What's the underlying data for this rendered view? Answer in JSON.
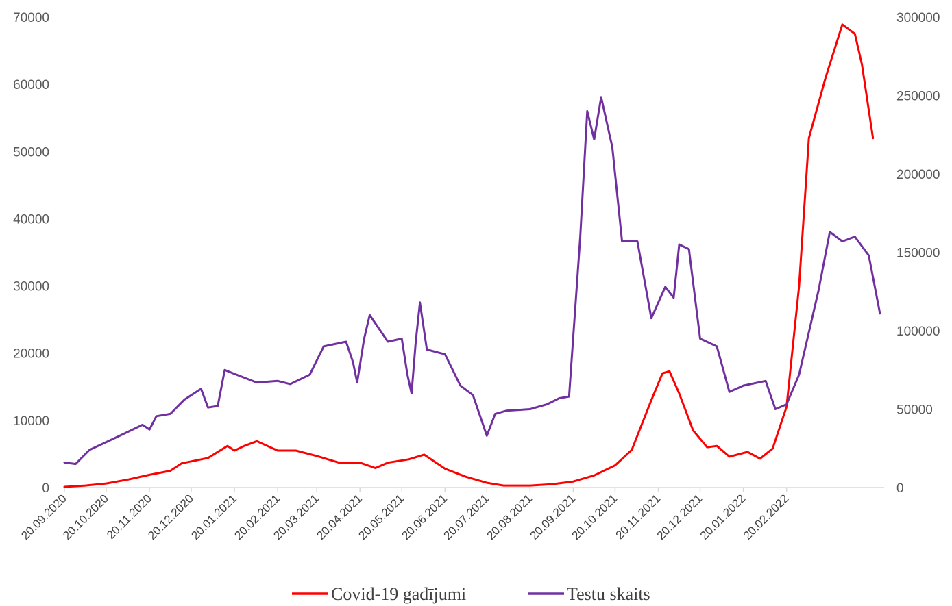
{
  "chart_data": {
    "type": "line",
    "title": "",
    "xlabel": "",
    "ylabel_left": "",
    "ylabel_right": "",
    "x_tick_labels": [
      "20.09.2020",
      "20.10.2020",
      "20.11.2020",
      "20.12.2020",
      "20.01.2021",
      "20.02.2021",
      "20.03.2021",
      "20.04.2021",
      "20.05.2021",
      "20.06.2021",
      "20.07.2021",
      "20.08.2021",
      "20.09.2021",
      "20.10.2021",
      "20.11.2021",
      "20.12.2021",
      "20.01.2022",
      "20.02.2022"
    ],
    "y_left_ticks": [
      0,
      10000,
      20000,
      30000,
      40000,
      50000,
      60000,
      70000
    ],
    "y_right_ticks": [
      0,
      50000,
      100000,
      150000,
      200000,
      250000,
      300000
    ],
    "y_left_range": [
      0,
      70000
    ],
    "y_right_range": [
      0,
      300000
    ],
    "grid": false,
    "legend_position": "bottom",
    "series": [
      {
        "name": "Covid-19 gadījumi",
        "axis": "left",
        "color": "#ff0000",
        "points": [
          [
            "20.09.2020",
            100
          ],
          [
            "05.10.2020",
            300
          ],
          [
            "20.10.2020",
            600
          ],
          [
            "05.11.2020",
            1200
          ],
          [
            "20.11.2020",
            1900
          ],
          [
            "05.12.2020",
            2500
          ],
          [
            "13.12.2020",
            3600
          ],
          [
            "01.01.2021",
            4400
          ],
          [
            "15.01.2021",
            6200
          ],
          [
            "20.01.2021",
            5500
          ],
          [
            "27.01.2021",
            6200
          ],
          [
            "05.02.2021",
            6900
          ],
          [
            "20.02.2021",
            5500
          ],
          [
            "05.03.2021",
            5500
          ],
          [
            "20.03.2021",
            4700
          ],
          [
            "05.04.2021",
            3700
          ],
          [
            "20.04.2021",
            3700
          ],
          [
            "01.05.2021",
            2900
          ],
          [
            "10.05.2021",
            3700
          ],
          [
            "25.05.2021",
            4200
          ],
          [
            "05.06.2021",
            4900
          ],
          [
            "20.06.2021",
            2800
          ],
          [
            "05.07.2021",
            1600
          ],
          [
            "20.07.2021",
            700
          ],
          [
            "01.08.2021",
            300
          ],
          [
            "20.08.2021",
            300
          ],
          [
            "05.09.2021",
            500
          ],
          [
            "20.09.2021",
            900
          ],
          [
            "05.10.2021",
            1800
          ],
          [
            "20.10.2021",
            3300
          ],
          [
            "01.11.2021",
            5600
          ],
          [
            "15.11.2021",
            13000
          ],
          [
            "23.11.2021",
            17000
          ],
          [
            "28.11.2021",
            17300
          ],
          [
            "05.12.2021",
            14000
          ],
          [
            "15.12.2021",
            8500
          ],
          [
            "25.12.2021",
            6000
          ],
          [
            "01.01.2022",
            6200
          ],
          [
            "10.01.2022",
            4600
          ],
          [
            "23.01.2022",
            5300
          ],
          [
            "01.02.2022",
            4300
          ],
          [
            "10.02.2022",
            5800
          ],
          [
            "20.02.2022",
            12000
          ],
          [
            "01.03.2022",
            30000
          ],
          [
            "08.03.2022",
            52000
          ],
          [
            "20.03.2022",
            61000
          ],
          [
            "01.04.2022",
            68900
          ],
          [
            "10.04.2022",
            67500
          ],
          [
            "15.04.2022",
            63000
          ],
          [
            "23.04.2022",
            52000
          ]
        ]
      },
      {
        "name": "Testu skaits",
        "axis": "right",
        "color": "#7030a0",
        "points": [
          [
            "20.09.2020",
            16000
          ],
          [
            "28.09.2020",
            15000
          ],
          [
            "08.10.2020",
            24000
          ],
          [
            "20.10.2020",
            29000
          ],
          [
            "01.11.2020",
            34000
          ],
          [
            "15.11.2020",
            40000
          ],
          [
            "20.11.2020",
            37000
          ],
          [
            "25.11.2020",
            45500
          ],
          [
            "05.12.2020",
            47000
          ],
          [
            "15.12.2020",
            56000
          ],
          [
            "27.12.2020",
            63000
          ],
          [
            "01.01.2021",
            51000
          ],
          [
            "08.01.2021",
            52000
          ],
          [
            "13.01.2021",
            75000
          ],
          [
            "20.01.2021",
            72500
          ],
          [
            "05.02.2021",
            67000
          ],
          [
            "20.02.2021",
            68000
          ],
          [
            "01.03.2021",
            66000
          ],
          [
            "15.03.2021",
            72000
          ],
          [
            "25.03.2021",
            90000
          ],
          [
            "10.04.2021",
            93000
          ],
          [
            "15.04.2021",
            80000
          ],
          [
            "18.04.2021",
            67000
          ],
          [
            "23.04.2021",
            95000
          ],
          [
            "27.04.2021",
            110000
          ],
          [
            "10.05.2021",
            93000
          ],
          [
            "20.05.2021",
            95000
          ],
          [
            "24.05.2021",
            72000
          ],
          [
            "27.05.2021",
            60000
          ],
          [
            "30.05.2021",
            93000
          ],
          [
            "02.06.2021",
            118000
          ],
          [
            "07.06.2021",
            88000
          ],
          [
            "20.06.2021",
            85000
          ],
          [
            "01.07.2021",
            65000
          ],
          [
            "10.07.2021",
            59000
          ],
          [
            "20.07.2021",
            33000
          ],
          [
            "26.07.2021",
            47000
          ],
          [
            "03.08.2021",
            49000
          ],
          [
            "20.08.2021",
            50000
          ],
          [
            "01.09.2021",
            53000
          ],
          [
            "10.09.2021",
            57000
          ],
          [
            "17.09.2021",
            58000
          ],
          [
            "25.09.2021",
            160000
          ],
          [
            "30.09.2021",
            240000
          ],
          [
            "05.10.2021",
            222000
          ],
          [
            "10.10.2021",
            249000
          ],
          [
            "18.10.2021",
            217000
          ],
          [
            "25.10.2021",
            157000
          ],
          [
            "05.11.2021",
            157000
          ],
          [
            "15.11.2021",
            108000
          ],
          [
            "25.11.2021",
            128000
          ],
          [
            "01.12.2021",
            121000
          ],
          [
            "05.12.2021",
            155000
          ],
          [
            "12.12.2021",
            152000
          ],
          [
            "20.12.2021",
            95000
          ],
          [
            "01.01.2022",
            90000
          ],
          [
            "10.01.2022",
            61000
          ],
          [
            "20.01.2022",
            65000
          ],
          [
            "05.02.2022",
            68000
          ],
          [
            "12.02.2022",
            50000
          ],
          [
            "20.02.2022",
            53000
          ],
          [
            "01.03.2022",
            72000
          ],
          [
            "15.03.2022",
            126000
          ],
          [
            "23.03.2022",
            163000
          ],
          [
            "01.04.2022",
            157000
          ],
          [
            "10.04.2022",
            160000
          ],
          [
            "20.04.2022",
            148000
          ],
          [
            "28.04.2022",
            111000
          ]
        ]
      }
    ]
  }
}
